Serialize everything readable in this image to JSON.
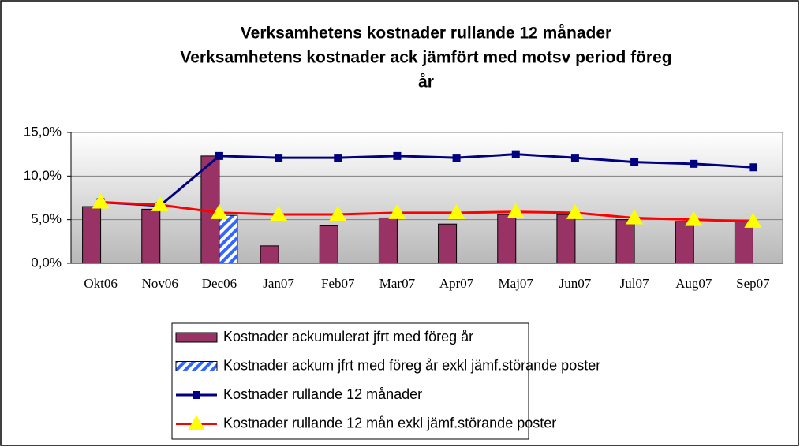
{
  "chart_data": {
    "type": "bar_line",
    "title": [
      "Verksamhetens kostnader rullande 12 månader",
      "Verksamhetens kostnader ack jämfört med motsv period föreg",
      "år"
    ],
    "categories": [
      "Okt06",
      "Nov06",
      "Dec06",
      "Jan07",
      "Feb07",
      "Mar07",
      "Apr07",
      "Maj07",
      "Jun07",
      "Jul07",
      "Aug07",
      "Sep07"
    ],
    "series": [
      {
        "name": "Kostnader ackumulerat jfrt med föreg år",
        "kind": "bar",
        "color": "#993366",
        "values": [
          6.5,
          6.2,
          12.3,
          2.0,
          4.3,
          5.2,
          4.5,
          5.6,
          5.6,
          5.0,
          4.8,
          4.9
        ]
      },
      {
        "name": "Kostnader ackum jfrt med föreg år exkl jämf.störande poster",
        "kind": "bar",
        "pattern": "hatch",
        "color": "#3366ff",
        "values": [
          null,
          null,
          5.5,
          null,
          null,
          null,
          null,
          null,
          null,
          null,
          null,
          null
        ]
      },
      {
        "name": "Kostnader rullande 12 månader",
        "kind": "line",
        "marker": "square",
        "color": "#000080",
        "values": [
          7.0,
          6.6,
          12.3,
          12.1,
          12.1,
          12.3,
          12.1,
          12.5,
          12.1,
          11.6,
          11.4,
          11.0
        ]
      },
      {
        "name": "Kostnader rullande 12 mån exkl jämf.störande poster",
        "kind": "line",
        "marker": "triangle",
        "color": "#ff0000",
        "marker_color": "#ffff00",
        "values": [
          7.0,
          6.7,
          5.8,
          5.6,
          5.6,
          5.8,
          5.8,
          5.9,
          5.8,
          5.2,
          5.0,
          4.8
        ]
      }
    ],
    "ylim": [
      0,
      15
    ],
    "yticks": [
      {
        "value": 0,
        "label": "0,0%"
      },
      {
        "value": 5,
        "label": "5,0%"
      },
      {
        "value": 10,
        "label": "10,0%"
      },
      {
        "value": 15,
        "label": "15,0%"
      }
    ],
    "grid": true
  }
}
